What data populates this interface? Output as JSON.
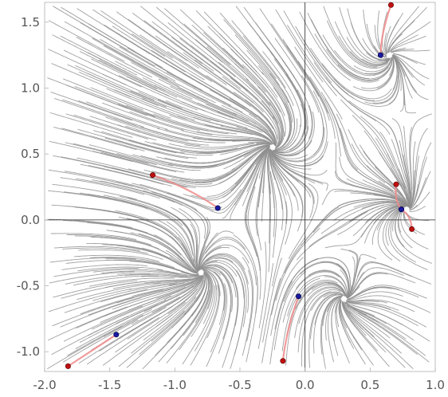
{
  "chart_data": {
    "type": "streamplot",
    "xlim": [
      -2.0,
      1.0
    ],
    "ylim": [
      -1.15,
      1.65
    ],
    "x_ticks": [
      -2.0,
      -1.5,
      -1.0,
      -0.5,
      0.0,
      0.5,
      1.0
    ],
    "x_tick_labels": [
      "-2.0",
      "-1.5",
      "-1.0",
      "-0.5",
      "0.0",
      "0.5",
      "1.0"
    ],
    "y_ticks": [
      -1.0,
      -0.5,
      0.0,
      0.5,
      1.0,
      1.5
    ],
    "y_tick_labels": [
      "-1.0",
      "-0.5",
      "0.0",
      "0.5",
      "1.0",
      "1.5"
    ],
    "grid": false,
    "colors": {
      "stream": "#8f8f8f",
      "trajectory": "#f08a8a",
      "start_point": "#c01010",
      "end_point": "#1a1aa0"
    },
    "attractors": [
      {
        "x": -0.25,
        "y": 0.55
      },
      {
        "x": -0.8,
        "y": -0.4
      },
      {
        "x": 0.3,
        "y": -0.6
      },
      {
        "x": 0.65,
        "y": 1.25
      },
      {
        "x": 0.78,
        "y": 0.08
      }
    ],
    "trajectories": [
      {
        "start": [
          0.66,
          1.63
        ],
        "end": [
          0.58,
          1.25
        ]
      },
      {
        "start": [
          -1.17,
          0.34
        ],
        "end": [
          -0.67,
          0.09
        ]
      },
      {
        "start": [
          0.7,
          0.27
        ],
        "end": [
          0.74,
          0.08
        ]
      },
      {
        "start": [
          0.82,
          -0.07
        ],
        "end": [
          0.74,
          0.08
        ]
      },
      {
        "start": [
          -0.17,
          -1.07
        ],
        "end": [
          -0.05,
          -0.58
        ]
      },
      {
        "start": [
          -1.82,
          -1.11
        ],
        "end": [
          -1.45,
          -0.87
        ]
      }
    ]
  }
}
